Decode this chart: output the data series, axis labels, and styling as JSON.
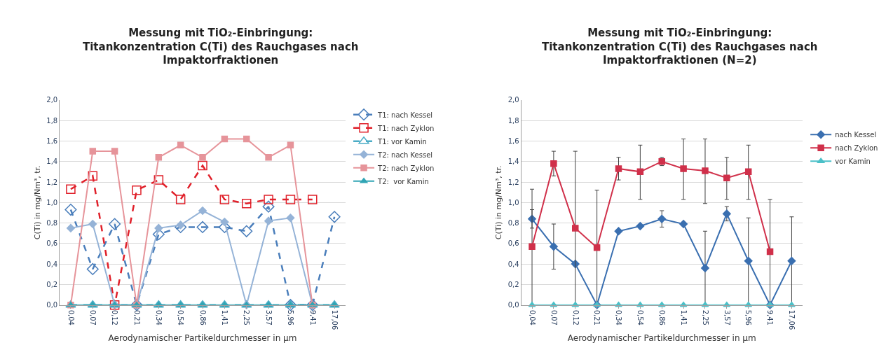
{
  "chart_data": [
    {
      "type": "line",
      "title": "Messung mit TiO₂-Einbringung:\nTitankonzentration C(Ti) des Rauchgases nach\nImpaktorfraktionen",
      "xlabel": "Aerodynamischer Partikeldurchmesser in µm",
      "ylabel": "C(Ti) in mg/Nm³, tr.",
      "categories": [
        "0,04",
        "0,07",
        "0,12",
        "0,21",
        "0,34",
        "0,54",
        "0,86",
        "1,41",
        "2,25",
        "3,57",
        "5,96",
        "9,41",
        "17,06"
      ],
      "ylim": [
        0,
        2
      ],
      "yticks": [
        {
          "value": 0,
          "label": "0,0"
        },
        {
          "value": 0.2,
          "label": "0,2"
        },
        {
          "value": 0.4,
          "label": "0,4"
        },
        {
          "value": 0.6,
          "label": "0,6"
        },
        {
          "value": 0.8,
          "label": "0,8"
        },
        {
          "value": 1.0,
          "label": "1,0"
        },
        {
          "value": 1.2,
          "label": "1,2"
        },
        {
          "value": 1.4,
          "label": "1,4"
        },
        {
          "value": 1.6,
          "label": "1,6"
        },
        {
          "value": 1.8,
          "label": "1,8"
        },
        {
          "value": 2.0,
          "label": "2,0"
        }
      ],
      "grid": "y",
      "legend": "right",
      "series": [
        {
          "name": "T1: nach Kessel",
          "color": "#4a7ebb",
          "marker": "diamond",
          "line_style": "dashed",
          "values": [
            0.93,
            0.35,
            0.79,
            0.0,
            0.69,
            0.76,
            0.76,
            0.76,
            0.72,
            0.96,
            0.0,
            0.0,
            0.86
          ]
        },
        {
          "name": "T1: nach Zyklon",
          "color": "#e0202a",
          "marker": "square",
          "line_style": "dashed",
          "values": [
            1.13,
            1.26,
            0.0,
            1.12,
            1.22,
            1.03,
            1.36,
            1.03,
            0.99,
            1.03,
            1.03,
            1.03,
            null
          ]
        },
        {
          "name": "T1: vor Kamin",
          "color": "#4bacc6",
          "marker": "triangle",
          "line_style": "dashed",
          "values": [
            0,
            0,
            0,
            0,
            0,
            0,
            0,
            0,
            0,
            0,
            0,
            0,
            0
          ]
        },
        {
          "name": "T2: nach Kessel",
          "color": "#95b3d7",
          "marker": "diamond",
          "line_style": "solid",
          "values": [
            0.75,
            0.79,
            0.0,
            0.0,
            0.75,
            0.78,
            0.92,
            0.81,
            0.0,
            0.82,
            0.85,
            0.0,
            null
          ]
        },
        {
          "name": "T2: nach Zyklon",
          "color": "#e6949a",
          "marker": "square",
          "line_style": "solid",
          "values": [
            0.0,
            1.5,
            1.5,
            0.0,
            1.44,
            1.56,
            1.44,
            1.62,
            1.62,
            1.44,
            1.56,
            0.0,
            null
          ]
        },
        {
          "name": "T2:  vor Kamin",
          "color": "#31a5b5",
          "marker": "triangle",
          "line_style": "solid",
          "values": [
            0,
            0,
            0,
            0,
            0,
            0,
            0,
            0,
            0,
            0,
            0,
            0,
            0
          ]
        }
      ]
    },
    {
      "type": "line",
      "title": "Messung mit TiO₂-Einbringung:\nTitankonzentration C(Ti) des Rauchgases nach\nImpaktorfraktionen (N=2)",
      "xlabel": "Aerodynamischer Partikeldurchmesser in µm",
      "ylabel": "C(Ti) in mg/Nm³, tr.",
      "categories": [
        "0,04",
        "0,07",
        "0,12",
        "0,21",
        "0,34",
        "0,54",
        "0,86",
        "1,41",
        "2,25",
        "3,57",
        "5,96",
        "9,41",
        "17,06"
      ],
      "ylim": [
        0,
        2
      ],
      "yticks": [
        {
          "value": 0,
          "label": "0,0"
        },
        {
          "value": 0.2,
          "label": "0,2"
        },
        {
          "value": 0.4,
          "label": "0,4"
        },
        {
          "value": 0.6,
          "label": "0,6"
        },
        {
          "value": 0.8,
          "label": "0,8"
        },
        {
          "value": 1.0,
          "label": "1,0"
        },
        {
          "value": 1.2,
          "label": "1,2"
        },
        {
          "value": 1.4,
          "label": "1,4"
        },
        {
          "value": 1.6,
          "label": "1,6"
        },
        {
          "value": 1.8,
          "label": "1,8"
        },
        {
          "value": 2.0,
          "label": "2,0"
        }
      ],
      "grid": "y",
      "legend": "right",
      "line_style": "solid",
      "series": [
        {
          "name": "nach Kessel",
          "color": "#3a6fb0",
          "marker": "diamond",
          "values": [
            0.84,
            0.57,
            0.4,
            0.0,
            0.72,
            0.77,
            0.84,
            0.79,
            0.36,
            0.89,
            0.43,
            0.0,
            0.43
          ],
          "errors": [
            [
              0.75,
              0.93
            ],
            [
              0.35,
              0.79
            ],
            null,
            null,
            null,
            null,
            [
              0.76,
              0.92
            ],
            null,
            [
              0.0,
              0.72
            ],
            [
              0.82,
              0.96
            ],
            [
              0.0,
              0.85
            ],
            null,
            [
              0.0,
              0.86
            ]
          ]
        },
        {
          "name": "nach Zyklon",
          "color": "#d0304a",
          "marker": "square",
          "values": [
            0.57,
            1.38,
            0.75,
            0.56,
            1.33,
            1.3,
            1.4,
            1.33,
            1.31,
            1.24,
            1.3,
            0.52,
            null
          ],
          "errors": [
            [
              0.0,
              1.13
            ],
            [
              1.26,
              1.5
            ],
            [
              0.0,
              1.5
            ],
            [
              0.0,
              1.12
            ],
            [
              1.22,
              1.44
            ],
            [
              1.03,
              1.56
            ],
            [
              1.36,
              1.44
            ],
            [
              1.03,
              1.62
            ],
            [
              0.99,
              1.62
            ],
            [
              1.03,
              1.44
            ],
            [
              1.03,
              1.56
            ],
            [
              0.0,
              1.03
            ],
            null
          ]
        },
        {
          "name": "vor Kamin",
          "color": "#4bc0c8",
          "marker": "triangle",
          "values": [
            0,
            0,
            0,
            0,
            0,
            0,
            0,
            0,
            0,
            0,
            0,
            0,
            0
          ]
        }
      ]
    }
  ]
}
